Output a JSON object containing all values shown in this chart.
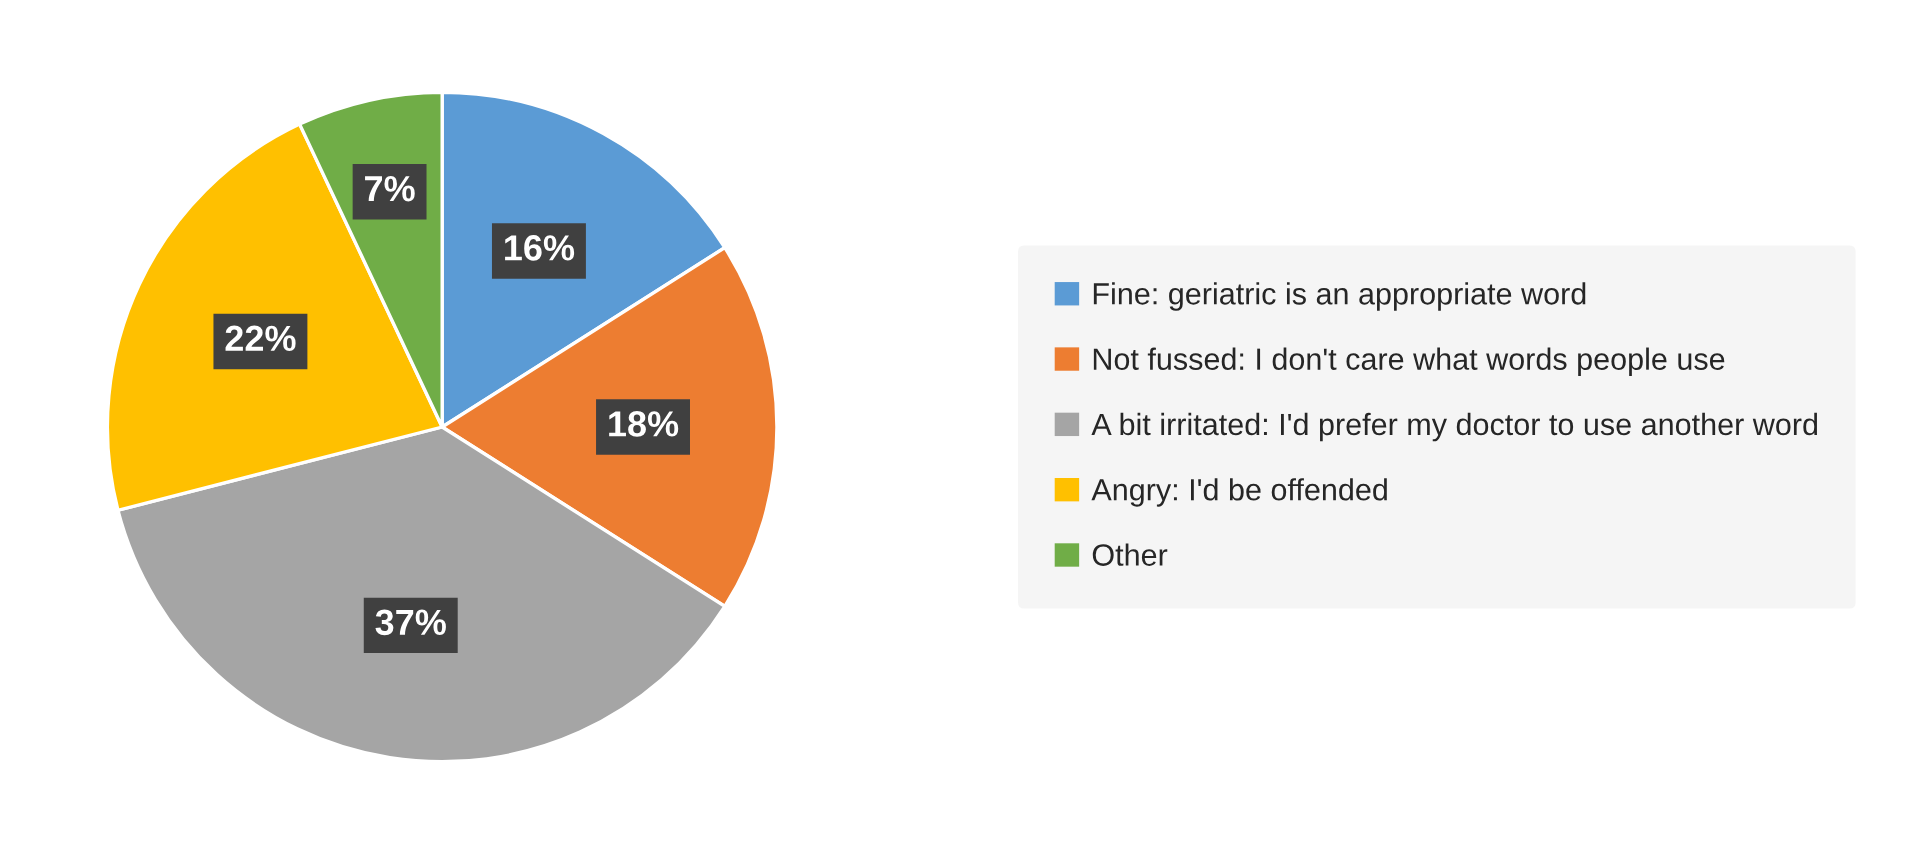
{
  "chart_data": {
    "type": "pie",
    "categories": [
      "Fine: geriatric is an appropriate word",
      "Not fussed: I don't care what words people use",
      "A bit irritated: I'd prefer my doctor to use another word",
      "Angry: I'd be offended",
      "Other"
    ],
    "values": [
      16,
      18,
      37,
      22,
      7
    ],
    "colors": [
      "#5b9bd5",
      "#ed7d31",
      "#a5a5a5",
      "#ffc000",
      "#70ad47"
    ],
    "value_labels": [
      "16%",
      "18%",
      "37%",
      "22%",
      "7%"
    ],
    "legend": "right"
  }
}
